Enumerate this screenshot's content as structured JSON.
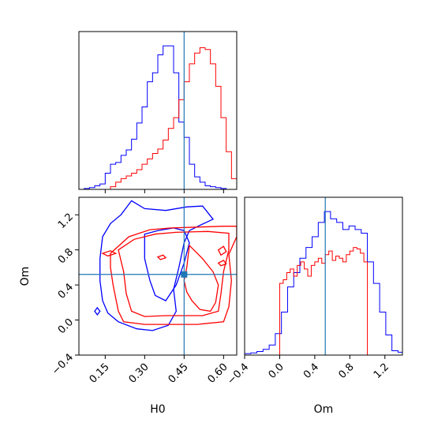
{
  "colors": {
    "series_a": "#ff0000",
    "series_b": "#0000ff",
    "truth": "#1f77b4",
    "frame": "#000000"
  },
  "chart_data": [
    {
      "type": "histogram",
      "panel": "top-left",
      "variable": "H0",
      "xlim": [
        0.05,
        0.65
      ],
      "truth": 0.45,
      "series": [
        {
          "color": "#0000ff",
          "bin_edges": [
            0.05,
            0.07,
            0.09,
            0.11,
            0.13,
            0.15,
            0.17,
            0.19,
            0.21,
            0.23,
            0.25,
            0.27,
            0.29,
            0.31,
            0.33,
            0.35,
            0.37,
            0.39,
            0.41,
            0.43,
            0.45,
            0.47,
            0.49,
            0.51,
            0.53,
            0.55,
            0.57,
            0.59,
            0.61,
            0.63,
            0.65
          ],
          "values": [
            0,
            1,
            2,
            4,
            6,
            18,
            28,
            30,
            38,
            44,
            56,
            74,
            92,
            120,
            130,
            150,
            160,
            160,
            130,
            75,
            58,
            28,
            14,
            8,
            4,
            3,
            2,
            1,
            0,
            0
          ]
        },
        {
          "color": "#ff0000",
          "bin_edges": [
            0.05,
            0.07,
            0.09,
            0.11,
            0.13,
            0.15,
            0.17,
            0.19,
            0.21,
            0.23,
            0.25,
            0.27,
            0.29,
            0.31,
            0.33,
            0.35,
            0.37,
            0.39,
            0.41,
            0.43,
            0.45,
            0.47,
            0.49,
            0.51,
            0.53,
            0.55,
            0.57,
            0.59,
            0.61,
            0.63,
            0.65
          ],
          "values": [
            0,
            0,
            0,
            0,
            0,
            0,
            3,
            8,
            12,
            15,
            18,
            22,
            28,
            34,
            40,
            45,
            55,
            68,
            80,
            100,
            120,
            140,
            152,
            158,
            156,
            140,
            115,
            80,
            42,
            12
          ]
        }
      ]
    },
    {
      "type": "contour",
      "panel": "bottom-left",
      "xlabel": "H0",
      "ylabel": "Om",
      "xlim": [
        0.05,
        0.65
      ],
      "ylim": [
        -0.4,
        1.4
      ],
      "xticks": [
        "0.15",
        "0.30",
        "0.45",
        "0.60"
      ],
      "yticks": [
        "−0.4",
        "0.0",
        "0.4",
        "0.8",
        "1.2"
      ],
      "truth": [
        0.45,
        0.52
      ],
      "series": [
        {
          "color": "#0000ff",
          "contours": [
            [
              [
                0.25,
                1.36
              ],
              [
                0.3,
                1.27
              ],
              [
                0.38,
                1.25
              ],
              [
                0.46,
                1.29
              ],
              [
                0.52,
                1.3
              ],
              [
                0.56,
                1.15
              ],
              [
                0.51,
                1.08
              ],
              [
                0.47,
                1.02
              ],
              [
                0.45,
                0.88
              ],
              [
                0.43,
                0.6
              ],
              [
                0.41,
                0.35
              ],
              [
                0.42,
                0.1
              ],
              [
                0.39,
                -0.06
              ],
              [
                0.33,
                -0.12
              ],
              [
                0.27,
                -0.1
              ],
              [
                0.2,
                -0.02
              ],
              [
                0.16,
                0.08
              ],
              [
                0.14,
                0.22
              ],
              [
                0.13,
                0.45
              ],
              [
                0.13,
                0.7
              ],
              [
                0.14,
                0.95
              ],
              [
                0.17,
                1.1
              ],
              [
                0.21,
                1.2
              ],
              [
                0.25,
                1.36
              ]
            ],
            [
              [
                0.3,
                0.98
              ],
              [
                0.35,
                1.02
              ],
              [
                0.41,
                1.05
              ],
              [
                0.45,
                1.02
              ],
              [
                0.47,
                0.88
              ],
              [
                0.45,
                0.65
              ],
              [
                0.42,
                0.4
              ],
              [
                0.38,
                0.22
              ],
              [
                0.34,
                0.28
              ],
              [
                0.32,
                0.45
              ],
              [
                0.3,
                0.7
              ],
              [
                0.3,
                0.98
              ]
            ],
            [
              [
                0.11,
                0.1
              ],
              [
                0.12,
                0.14
              ],
              [
                0.13,
                0.1
              ],
              [
                0.12,
                0.06
              ],
              [
                0.11,
                0.1
              ]
            ]
          ]
        },
        {
          "color": "#ff0000",
          "contours": [
            [
              [
                0.17,
                0.76
              ],
              [
                0.24,
                0.95
              ],
              [
                0.32,
                1.03
              ],
              [
                0.4,
                1.05
              ],
              [
                0.5,
                1.06
              ],
              [
                0.6,
                1.07
              ],
              [
                0.65,
                1.07
              ],
              [
                0.65,
                0.95
              ],
              [
                0.62,
                0.75
              ],
              [
                0.63,
                0.45
              ],
              [
                0.62,
                0.15
              ],
              [
                0.6,
                -0.02
              ],
              [
                0.5,
                -0.05
              ],
              [
                0.4,
                -0.05
              ],
              [
                0.3,
                -0.05
              ],
              [
                0.22,
                -0.02
              ],
              [
                0.2,
                0.1
              ],
              [
                0.18,
                0.4
              ],
              [
                0.17,
                0.6
              ],
              [
                0.17,
                0.76
              ]
            ],
            [
              [
                0.2,
                0.8
              ],
              [
                0.26,
                0.92
              ],
              [
                0.34,
                0.98
              ],
              [
                0.42,
                1.0
              ],
              [
                0.54,
                1.01
              ],
              [
                0.62,
                0.99
              ],
              [
                0.62,
                0.8
              ],
              [
                0.6,
                0.55
              ],
              [
                0.59,
                0.3
              ],
              [
                0.58,
                0.1
              ],
              [
                0.52,
                0.05
              ],
              [
                0.46,
                0.05
              ],
              [
                0.38,
                0.05
              ],
              [
                0.3,
                0.04
              ],
              [
                0.25,
                0.1
              ],
              [
                0.23,
                0.3
              ],
              [
                0.22,
                0.55
              ],
              [
                0.2,
                0.8
              ]
            ],
            [
              [
                0.47,
                0.85
              ],
              [
                0.52,
                0.7
              ],
              [
                0.56,
                0.55
              ],
              [
                0.58,
                0.4
              ],
              [
                0.57,
                0.2
              ],
              [
                0.55,
                0.1
              ],
              [
                0.51,
                0.12
              ],
              [
                0.48,
                0.22
              ],
              [
                0.46,
                0.32
              ],
              [
                0.45,
                0.45
              ],
              [
                0.46,
                0.6
              ],
              [
                0.47,
                0.85
              ]
            ],
            [
              [
                0.35,
                0.72
              ],
              [
                0.37,
                0.74
              ],
              [
                0.38,
                0.71
              ],
              [
                0.36,
                0.69
              ],
              [
                0.35,
                0.72
              ]
            ],
            [
              [
                0.58,
                0.8
              ],
              [
                0.6,
                0.84
              ],
              [
                0.61,
                0.78
              ],
              [
                0.59,
                0.74
              ],
              [
                0.58,
                0.8
              ]
            ],
            [
              [
                0.58,
                0.65
              ],
              [
                0.6,
                0.68
              ],
              [
                0.61,
                0.64
              ],
              [
                0.59,
                0.62
              ],
              [
                0.58,
                0.65
              ]
            ],
            [
              [
                0.14,
                0.76
              ],
              [
                0.17,
                0.79
              ],
              [
                0.19,
                0.76
              ],
              [
                0.16,
                0.73
              ],
              [
                0.14,
                0.76
              ]
            ]
          ]
        }
      ]
    },
    {
      "type": "histogram",
      "panel": "bottom-right",
      "variable": "Om",
      "xlabel": "Om",
      "xlim": [
        -0.4,
        1.4
      ],
      "xticks": [
        "−0.4",
        "0.0",
        "0.4",
        "0.8",
        "1.2"
      ],
      "truth": 0.52,
      "series": [
        {
          "color": "#0000ff",
          "bin_edges": [
            -0.4,
            -0.33,
            -0.26,
            -0.19,
            -0.12,
            -0.05,
            0.02,
            0.09,
            0.16,
            0.23,
            0.3,
            0.37,
            0.44,
            0.51,
            0.58,
            0.65,
            0.72,
            0.79,
            0.86,
            0.93,
            1.0,
            1.07,
            1.14,
            1.21,
            1.28,
            1.35,
            1.4
          ],
          "values": [
            2,
            3,
            5,
            8,
            14,
            30,
            60,
            95,
            115,
            135,
            150,
            165,
            185,
            200,
            190,
            185,
            175,
            180,
            175,
            170,
            130,
            100,
            60,
            28,
            6,
            4
          ]
        },
        {
          "color": "#ff0000",
          "bin_edges": [
            0.0,
            0.04,
            0.08,
            0.12,
            0.16,
            0.2,
            0.24,
            0.28,
            0.32,
            0.36,
            0.4,
            0.44,
            0.48,
            0.52,
            0.56,
            0.6,
            0.64,
            0.68,
            0.72,
            0.76,
            0.8,
            0.84,
            0.88,
            0.92,
            0.96,
            1.0
          ],
          "values": [
            100,
            105,
            115,
            120,
            110,
            125,
            130,
            120,
            110,
            125,
            130,
            135,
            128,
            140,
            145,
            132,
            138,
            135,
            130,
            140,
            145,
            150,
            148,
            142,
            130
          ]
        }
      ]
    }
  ]
}
